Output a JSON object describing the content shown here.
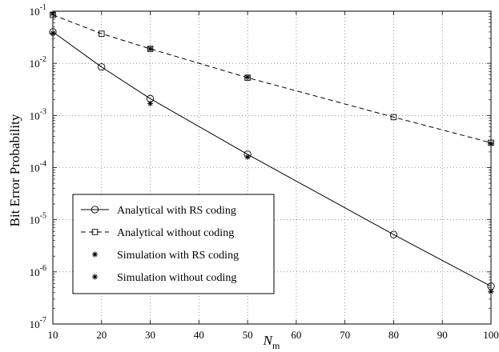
{
  "chart_data": {
    "type": "line",
    "title": "",
    "xlabel": "N",
    "xlabel_subscript": "m",
    "ylabel": "Bit Error Probability",
    "xlim": [
      10,
      100
    ],
    "ylim": [
      1e-07,
      0.1
    ],
    "yscale": "log",
    "grid": true,
    "legend_position": "lower-left",
    "x_ticks": [
      "10",
      "20",
      "30",
      "40",
      "50",
      "60",
      "70",
      "80",
      "90",
      "100"
    ],
    "y_ticks": [
      {
        "base": "10",
        "exp": "-7"
      },
      {
        "base": "10",
        "exp": "-6"
      },
      {
        "base": "10",
        "exp": "-5"
      },
      {
        "base": "10",
        "exp": "-4"
      },
      {
        "base": "10",
        "exp": "-3"
      },
      {
        "base": "10",
        "exp": "-2"
      },
      {
        "base": "10",
        "exp": "-1"
      }
    ],
    "series": [
      {
        "name": "Analytical with RS coding",
        "marker": "circle",
        "line": "solid",
        "x": [
          10,
          20,
          30,
          50,
          80,
          100
        ],
        "y": [
          0.04,
          0.0085,
          0.0021,
          0.00018,
          5.2e-06,
          5.3e-07
        ]
      },
      {
        "name": "Analytical without coding",
        "marker": "square",
        "line": "dashed",
        "x": [
          10,
          20,
          30,
          50,
          80,
          100
        ],
        "y": [
          0.085,
          0.037,
          0.019,
          0.0053,
          0.00093,
          0.0003
        ]
      },
      {
        "name": "Simulation with RS coding",
        "marker": "asterisk",
        "line": "none",
        "x": [
          10,
          30,
          50,
          100
        ],
        "y": [
          0.038,
          0.0017,
          0.00016,
          4.2e-07
        ]
      },
      {
        "name": "Simulation without  coding",
        "marker": "asterisk",
        "line": "none",
        "x": [
          10,
          30,
          50,
          100
        ],
        "y": [
          0.09,
          0.019,
          0.0054,
          0.00029
        ]
      }
    ],
    "colors": {
      "line": "#000000",
      "grid": "#555555",
      "background": "#ffffff"
    }
  }
}
